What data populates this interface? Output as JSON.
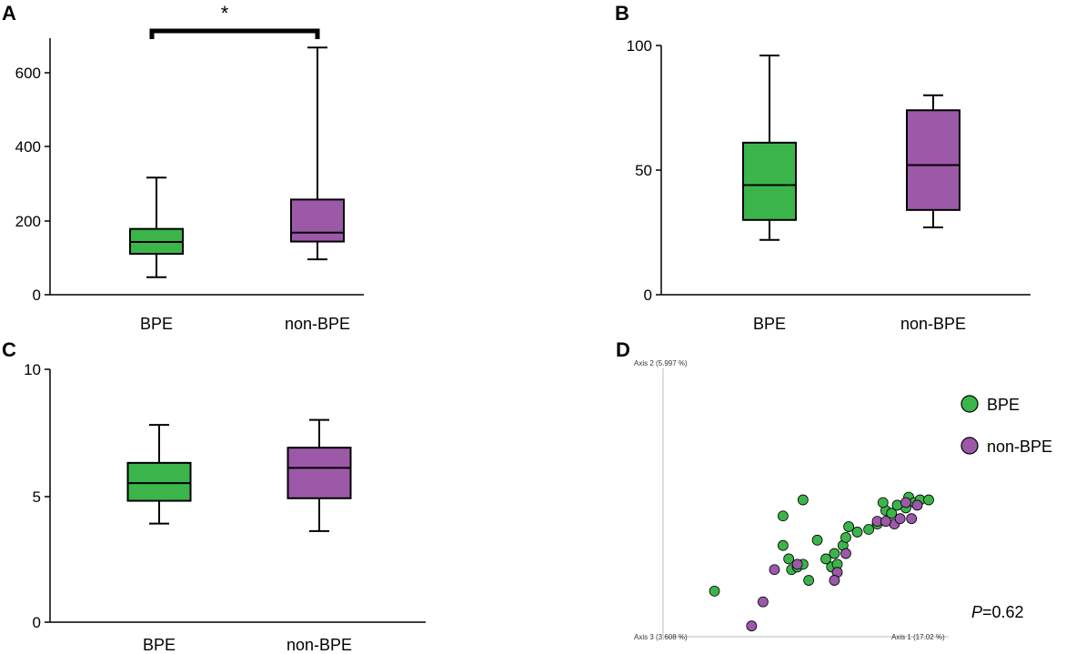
{
  "colors": {
    "bpe": "#3bb54a",
    "nonbpe": "#9b59a8"
  },
  "chart_data": [
    {
      "panel": "A",
      "type": "box",
      "categories": [
        "BPE",
        "non-BPE"
      ],
      "yticks": [
        "0",
        "200",
        "400",
        "600"
      ],
      "ylim": [
        0,
        690
      ],
      "boxes": [
        {
          "name": "BPE",
          "min": 47,
          "q1": 110,
          "median": 142,
          "q3": 177,
          "max": 315
        },
        {
          "name": "non-BPE",
          "min": 95,
          "q1": 143,
          "median": 167,
          "q3": 256,
          "max": 665
        }
      ],
      "significance": "*"
    },
    {
      "panel": "B",
      "type": "box",
      "categories": [
        "BPE",
        "non-BPE"
      ],
      "yticks": [
        "0",
        "50",
        "100"
      ],
      "ylim": [
        0,
        100
      ],
      "boxes": [
        {
          "name": "BPE",
          "min": 22,
          "q1": 30,
          "median": 44,
          "q3": 61,
          "max": 96
        },
        {
          "name": "non-BPE",
          "min": 27,
          "q1": 34,
          "median": 52,
          "q3": 74,
          "max": 80
        }
      ]
    },
    {
      "panel": "C",
      "type": "box",
      "categories": [
        "BPE",
        "non-BPE"
      ],
      "yticks": [
        "0",
        "5",
        "10"
      ],
      "ylim": [
        0,
        10
      ],
      "boxes": [
        {
          "name": "BPE",
          "min": 3.9,
          "q1": 4.8,
          "median": 5.5,
          "q3": 6.3,
          "max": 7.8
        },
        {
          "name": "non-BPE",
          "min": 3.6,
          "q1": 4.9,
          "median": 6.1,
          "q3": 6.9,
          "max": 8.0
        }
      ]
    },
    {
      "panel": "D",
      "type": "scatter",
      "axis_labels": {
        "axis1": "Axis 1 (17.02 %)",
        "axis2": "Axis 2 (5.997 %)",
        "axis3": "Axis 3 (3.608 %)"
      },
      "xlim": [
        0,
        1
      ],
      "ylim": [
        0,
        1
      ],
      "legend": [
        "BPE",
        "non-BPE"
      ],
      "pvalue_prefix": "P",
      "pvalue_value": "=0.62",
      "series": [
        {
          "name": "BPE",
          "points": [
            [
              0.18,
              0.17
            ],
            [
              0.49,
              0.51
            ],
            [
              0.42,
              0.45
            ],
            [
              0.54,
              0.36
            ],
            [
              0.63,
              0.34
            ],
            [
              0.6,
              0.31
            ],
            [
              0.57,
              0.29
            ],
            [
              0.59,
              0.26
            ],
            [
              0.64,
              0.37
            ],
            [
              0.61,
              0.27
            ],
            [
              0.51,
              0.21
            ],
            [
              0.45,
              0.25
            ],
            [
              0.47,
              0.26
            ],
            [
              0.44,
              0.29
            ],
            [
              0.49,
              0.27
            ],
            [
              0.72,
              0.4
            ],
            [
              0.78,
              0.47
            ],
            [
              0.86,
              0.52
            ],
            [
              0.88,
              0.5
            ],
            [
              0.75,
              0.42
            ],
            [
              0.68,
              0.39
            ],
            [
              0.85,
              0.48
            ],
            [
              0.82,
              0.49
            ],
            [
              0.9,
              0.51
            ],
            [
              0.8,
              0.46
            ],
            [
              0.42,
              0.34
            ],
            [
              0.65,
              0.41
            ],
            [
              0.93,
              0.51
            ],
            [
              0.77,
              0.5
            ]
          ]
        },
        {
          "name": "non-BPE",
          "points": [
            [
              0.31,
              0.04
            ],
            [
              0.35,
              0.13
            ],
            [
              0.39,
              0.25
            ],
            [
              0.47,
              0.27
            ],
            [
              0.61,
              0.24
            ],
            [
              0.64,
              0.31
            ],
            [
              0.6,
              0.21
            ],
            [
              0.75,
              0.43
            ],
            [
              0.81,
              0.42
            ],
            [
              0.85,
              0.5
            ],
            [
              0.83,
              0.44
            ],
            [
              0.89,
              0.49
            ],
            [
              0.78,
              0.43
            ],
            [
              0.87,
              0.44
            ]
          ]
        }
      ]
    }
  ]
}
